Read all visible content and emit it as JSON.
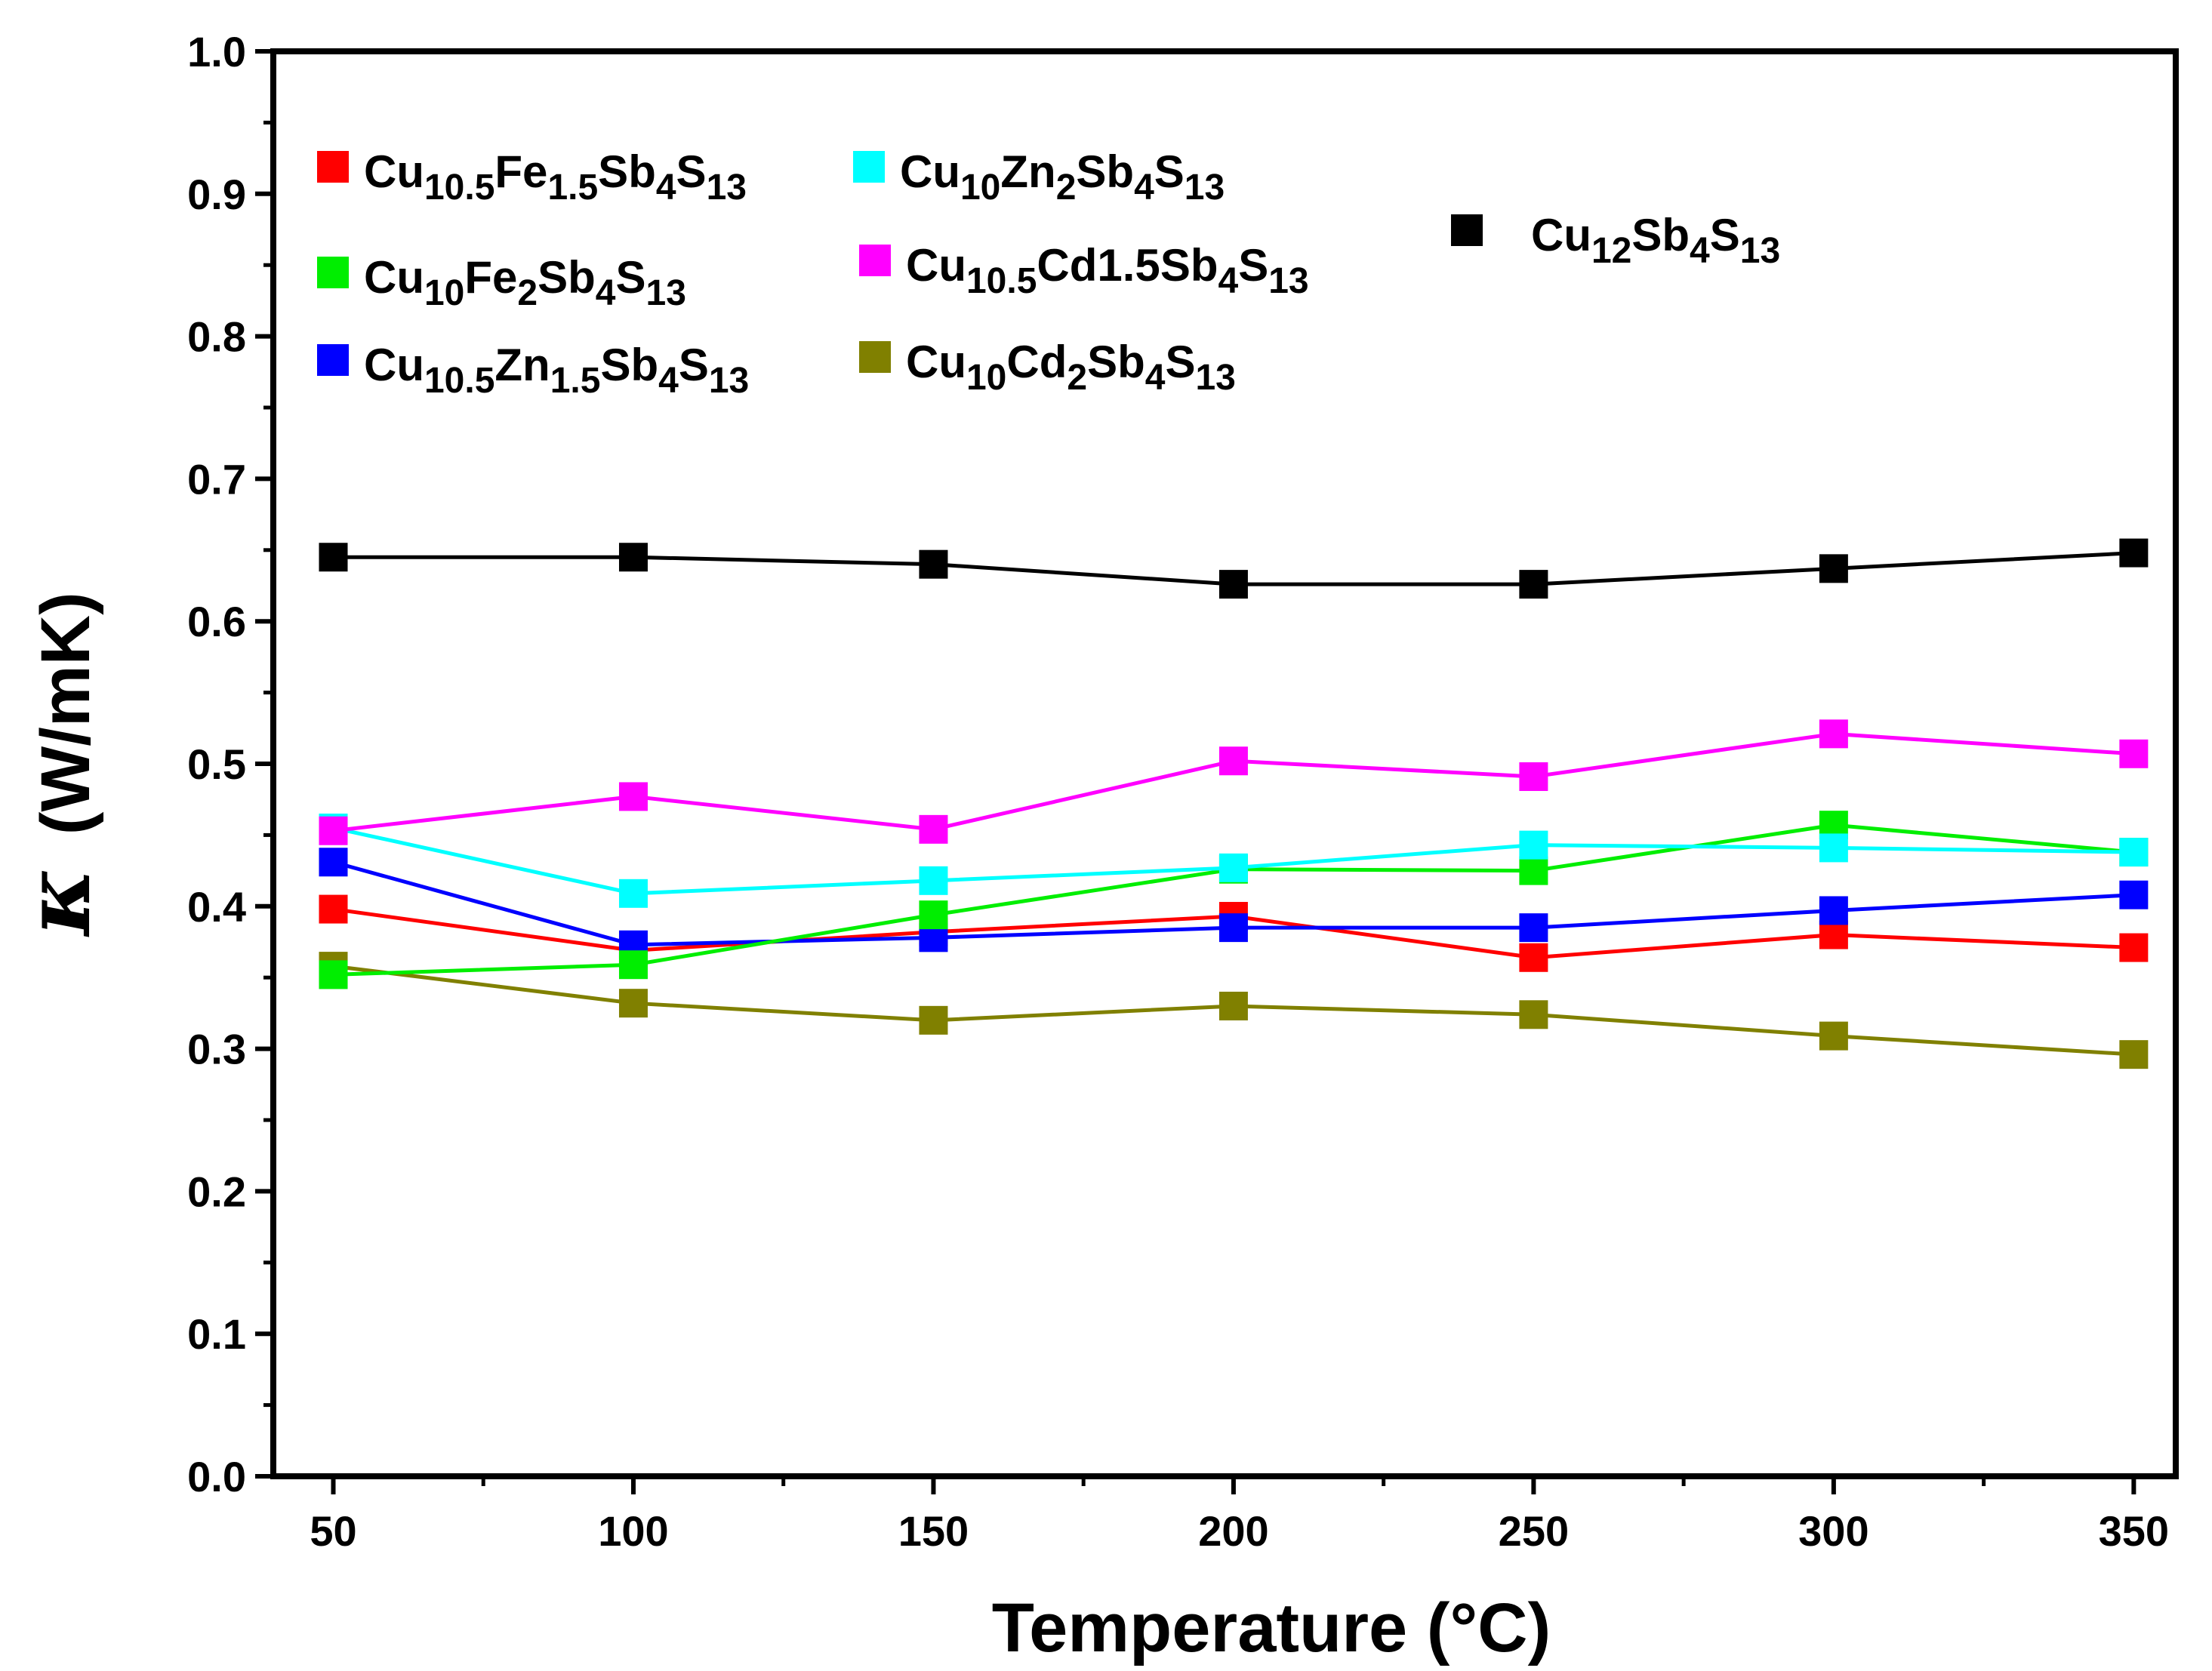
{
  "chart_data": {
    "type": "line",
    "title": "",
    "xlabel": "Temperature (°C)",
    "ylabel_symbol": "κ",
    "ylabel_unit": "(W/mK)",
    "x": [
      50,
      100,
      150,
      200,
      250,
      300,
      350
    ],
    "xlim": [
      40,
      357
    ],
    "ylim": [
      0.0,
      1.0
    ],
    "xticks": [
      50,
      100,
      150,
      200,
      250,
      300,
      350
    ],
    "yticks": [
      "0.0",
      "0.1",
      "0.2",
      "0.3",
      "0.4",
      "0.5",
      "0.6",
      "0.7",
      "0.8",
      "0.9",
      "1.0"
    ],
    "grid": false,
    "series": [
      {
        "name": "Cu12Sb4S13",
        "legend": [
          [
            "Cu",
            "n"
          ],
          [
            "12",
            "sub"
          ],
          [
            "Sb",
            "n"
          ],
          [
            "4",
            "sub"
          ],
          [
            "S",
            "n"
          ],
          [
            "13",
            "sub"
          ]
        ],
        "color": "#000000",
        "values": [
          0.645,
          0.645,
          0.64,
          0.626,
          0.626,
          0.637,
          0.648
        ]
      },
      {
        "name": "Cu10.5Fe1.5Sb4S13",
        "legend": [
          [
            "Cu",
            "n"
          ],
          [
            "10.5",
            "sub"
          ],
          [
            "Fe",
            "n"
          ],
          [
            "1.5",
            "sub"
          ],
          [
            "Sb",
            "n"
          ],
          [
            "4",
            "sub"
          ],
          [
            "S",
            "n"
          ],
          [
            "13",
            "sub"
          ]
        ],
        "color": "#ff0000",
        "values": [
          0.398,
          0.369,
          0.382,
          0.393,
          0.364,
          0.38,
          0.371
        ]
      },
      {
        "name": "Cu10Fe2Sb4S13",
        "legend": [
          [
            "Cu",
            "n"
          ],
          [
            "10",
            "sub"
          ],
          [
            "Fe",
            "n"
          ],
          [
            "2",
            "sub"
          ],
          [
            "Sb",
            "n"
          ],
          [
            "4",
            "sub"
          ],
          [
            "S",
            "n"
          ],
          [
            "13",
            "sub"
          ]
        ],
        "color": "#00ee00",
        "values": [
          0.352,
          0.359,
          0.394,
          0.426,
          0.425,
          0.457,
          0.438
        ]
      },
      {
        "name": "Cu10.5Zn1.5Sb4S13",
        "legend": [
          [
            "Cu",
            "n"
          ],
          [
            "10.5",
            "sub"
          ],
          [
            "Zn",
            "n"
          ],
          [
            "1.5",
            "sub"
          ],
          [
            "Sb",
            "n"
          ],
          [
            "4",
            "sub"
          ],
          [
            "S",
            "n"
          ],
          [
            "13",
            "sub"
          ]
        ],
        "color": "#0000ff",
        "values": [
          0.431,
          0.373,
          0.378,
          0.385,
          0.385,
          0.397,
          0.408
        ]
      },
      {
        "name": "Cu10Zn2Sb4S13",
        "legend": [
          [
            "Cu",
            "n"
          ],
          [
            "10",
            "sub"
          ],
          [
            "Zn",
            "n"
          ],
          [
            "2",
            "sub"
          ],
          [
            "Sb",
            "n"
          ],
          [
            "4",
            "sub"
          ],
          [
            "S",
            "n"
          ],
          [
            "13",
            "sub"
          ]
        ],
        "color": "#00ffff",
        "values": [
          0.455,
          0.409,
          0.418,
          0.427,
          0.443,
          0.441,
          0.438
        ]
      },
      {
        "name": "Cu10.5Cd1.5Sb4S13",
        "legend": [
          [
            "Cu",
            "n"
          ],
          [
            "10.5",
            "sub"
          ],
          [
            "Cd",
            "n"
          ],
          [
            "1.5",
            "n"
          ],
          [
            "Sb",
            "n"
          ],
          [
            "4",
            "sub"
          ],
          [
            "S",
            "n"
          ],
          [
            "13",
            "sub"
          ]
        ],
        "color": "#ff00ff",
        "values": [
          0.453,
          0.477,
          0.454,
          0.502,
          0.491,
          0.521,
          0.507
        ]
      },
      {
        "name": "Cu10Cd2Sb4S13",
        "legend": [
          [
            "Cu",
            "n"
          ],
          [
            "10",
            "sub"
          ],
          [
            "Cd",
            "n"
          ],
          [
            "2",
            "sub"
          ],
          [
            "Sb",
            "n"
          ],
          [
            "4",
            "sub"
          ],
          [
            "S",
            "n"
          ],
          [
            "13",
            "sub"
          ]
        ],
        "color": "#808000",
        "values": [
          0.358,
          0.332,
          0.32,
          0.33,
          0.324,
          0.309,
          0.296
        ]
      }
    ]
  }
}
